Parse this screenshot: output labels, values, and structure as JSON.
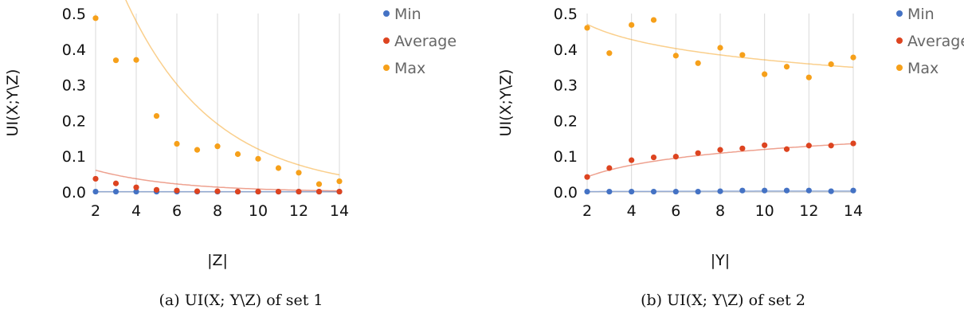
{
  "chart_data": [
    {
      "type": "scatter",
      "panel": "a",
      "xlabel": "|Z|",
      "ylabel": "UI(X;Y\\Z)",
      "xlim": [
        2,
        14
      ],
      "ylim": [
        0,
        0.5
      ],
      "xticks": [
        2,
        4,
        6,
        8,
        10,
        12,
        14
      ],
      "yticks": [
        "0.0",
        "0.1",
        "0.2",
        "0.3",
        "0.4",
        "0.5"
      ],
      "grid": "vertical",
      "legend_position": "top-right",
      "caption": {
        "prefix": "(a)",
        "text": "UI(X; Y\\Z) of set 1"
      },
      "x": [
        2,
        3,
        4,
        5,
        6,
        7,
        8,
        9,
        10,
        11,
        12,
        13,
        14
      ],
      "series": [
        {
          "name": "Min",
          "color": "#4472c4",
          "values": [
            0.001,
            0.001,
            0.001,
            0.001,
            0.001,
            0.001,
            0.001,
            0.001,
            0.001,
            0.001,
            0.001,
            0.001,
            0.001
          ],
          "trend": {
            "kind": "exp",
            "a": 0.001,
            "b": 0.0
          }
        },
        {
          "name": "Average",
          "color": "#dd4420",
          "values": [
            0.037,
            0.024,
            0.013,
            0.006,
            0.004,
            0.002,
            0.002,
            0.001,
            0.001,
            0.001,
            0.001,
            0.001,
            0.001
          ],
          "trend": {
            "kind": "exp",
            "a": 0.061,
            "b": 0.25
          }
        },
        {
          "name": "Max",
          "color": "#f6a01a",
          "values": [
            0.487,
            0.369,
            0.37,
            0.213,
            0.135,
            0.118,
            0.128,
            0.106,
            0.093,
            0.067,
            0.054,
            0.022,
            0.03
          ],
          "trend": {
            "kind": "exp",
            "a": 0.757,
            "b": 0.23
          }
        }
      ]
    },
    {
      "type": "scatter",
      "panel": "b",
      "xlabel": "|Y|",
      "ylabel": "UI(X;Y\\Z)",
      "xlim": [
        2,
        14
      ],
      "ylim": [
        0,
        0.5
      ],
      "xticks": [
        2,
        4,
        6,
        8,
        10,
        12,
        14
      ],
      "yticks": [
        "0.0",
        "0.1",
        "0.2",
        "0.3",
        "0.4",
        "0.5"
      ],
      "grid": "vertical",
      "legend_position": "top-right",
      "caption": {
        "prefix": "(b)",
        "text": "UI(X; Y\\Z) of set 2"
      },
      "x": [
        2,
        3,
        4,
        5,
        6,
        7,
        8,
        9,
        10,
        11,
        12,
        13,
        14
      ],
      "series": [
        {
          "name": "Min",
          "color": "#4472c4",
          "values": [
            0.001,
            0.001,
            0.001,
            0.001,
            0.001,
            0.001,
            0.002,
            0.004,
            0.004,
            0.004,
            0.004,
            0.002,
            0.004
          ],
          "trend": {
            "kind": "log",
            "a": 0.001,
            "b": 0.001
          }
        },
        {
          "name": "Average",
          "color": "#dd4420",
          "values": [
            0.042,
            0.067,
            0.089,
            0.097,
            0.099,
            0.109,
            0.118,
            0.122,
            0.131,
            0.12,
            0.13,
            0.13,
            0.136
          ],
          "trend": {
            "kind": "log",
            "a": 0.042,
            "b": 0.048
          }
        },
        {
          "name": "Max",
          "color": "#f6a01a",
          "values": [
            0.46,
            0.389,
            0.468,
            0.482,
            0.382,
            0.361,
            0.404,
            0.384,
            0.33,
            0.351,
            0.321,
            0.358,
            0.377
          ],
          "trend": {
            "kind": "log",
            "a": 0.47,
            "b": -0.062
          }
        }
      ]
    }
  ]
}
